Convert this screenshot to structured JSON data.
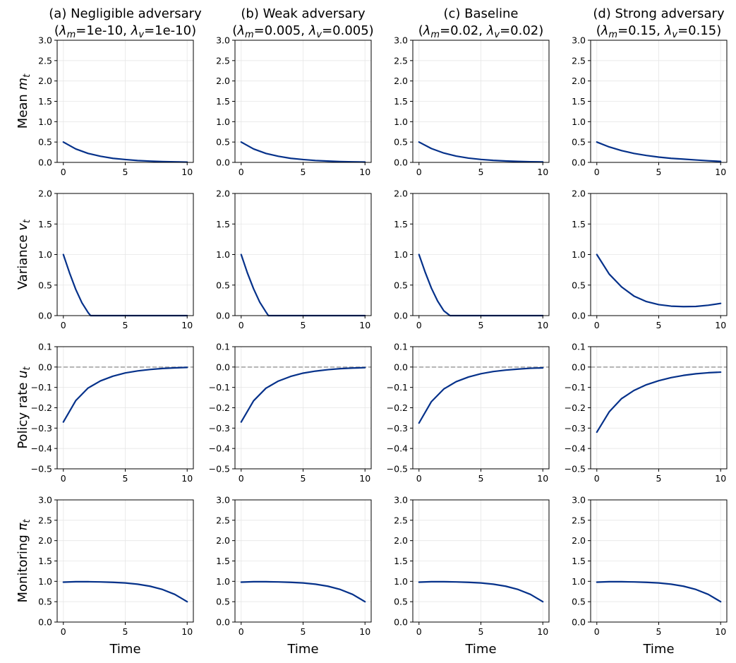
{
  "chart_data": {
    "type": "line",
    "layout": "4x4 grid of line subplots",
    "colors": {
      "curve": "#05318a",
      "grid": "#e6e6e6",
      "zero_line": "#9e9e9e",
      "axes": "#000000"
    },
    "columns": [
      {
        "title_line1": "(a) Negligible adversary",
        "title_line2": "(λm=1e-10, λv=1e-10)",
        "sub1": "m",
        "val1": "=1e-10, ",
        "sub2": "v",
        "val2": "=1e-10)"
      },
      {
        "title_line1": "(b) Weak adversary",
        "title_line2": "(λm=0.005, λv=0.005)",
        "sub1": "m",
        "val1": "=0.005, ",
        "sub2": "v",
        "val2": "=0.005)"
      },
      {
        "title_line1": "(c) Baseline",
        "title_line2": "(λm=0.02, λv=0.02)",
        "sub1": "m",
        "val1": "=0.02, ",
        "sub2": "v",
        "val2": "=0.02)"
      },
      {
        "title_line1": "(d) Strong adversary",
        "title_line2": "(λm=0.15, λv=0.15)",
        "sub1": "m",
        "val1": "=0.15, ",
        "sub2": "v",
        "val2": "=0.15)"
      }
    ],
    "rows": [
      {
        "ylabel": "Mean m_t",
        "label_text": "Mean ",
        "label_sym": "m",
        "label_sub": "t",
        "ylim": [
          0,
          3.0
        ],
        "yticks": [
          "0.0",
          "0.5",
          "1.0",
          "1.5",
          "2.0",
          "2.5",
          "3.0"
        ],
        "zero_line": false
      },
      {
        "ylabel": "Variance v_t",
        "label_text": "Variance ",
        "label_sym": "v",
        "label_sub": "t",
        "ylim": [
          0,
          2.0
        ],
        "yticks": [
          "0.0",
          "0.5",
          "1.0",
          "1.5",
          "2.0"
        ],
        "zero_line": false
      },
      {
        "ylabel": "Policy rate u_t",
        "label_text": "Policy rate ",
        "label_sym": "u",
        "label_sub": "t",
        "ylim": [
          -0.5,
          0.1
        ],
        "yticks": [
          "−0.5",
          "−0.4",
          "−0.3",
          "−0.2",
          "−0.1",
          "0.0",
          "0.1"
        ],
        "zero_line": true
      },
      {
        "ylabel": "Monitoring π_t",
        "label_text": "Monitoring ",
        "label_sym": "π",
        "label_sub": "t",
        "ylim": [
          0,
          3.0
        ],
        "yticks": [
          "0.0",
          "0.5",
          "1.0",
          "1.5",
          "2.0",
          "2.5",
          "3.0"
        ],
        "zero_line": false
      }
    ],
    "xlabel": "Time",
    "xlim": [
      -0.5,
      10.5
    ],
    "xticks": [
      "0",
      "5",
      "10"
    ],
    "grid": true,
    "series": [
      [
        {
          "x": [
            0,
            1,
            2,
            3,
            4,
            5,
            6,
            7,
            8,
            9,
            10
          ],
          "y": [
            0.5,
            0.33,
            0.22,
            0.15,
            0.1,
            0.07,
            0.046,
            0.031,
            0.02,
            0.013,
            0.008
          ]
        },
        {
          "x": [
            0,
            0.5,
            1,
            1.5,
            2,
            2.2,
            3,
            4,
            5,
            6,
            7,
            8,
            9,
            10
          ],
          "y": [
            1.0,
            0.7,
            0.43,
            0.21,
            0.05,
            0,
            0,
            0,
            0,
            0,
            0,
            0,
            0,
            0
          ]
        },
        {
          "x": [
            0,
            1,
            2,
            3,
            4,
            5,
            6,
            7,
            8,
            9,
            10
          ],
          "y": [
            -0.27,
            -0.165,
            -0.103,
            -0.068,
            -0.045,
            -0.029,
            -0.019,
            -0.012,
            -0.007,
            -0.004,
            -0.002
          ]
        },
        {
          "x": [
            0,
            1,
            2,
            3,
            4,
            5,
            6,
            7,
            8,
            9,
            10
          ],
          "y": [
            0.98,
            0.99,
            0.99,
            0.985,
            0.975,
            0.96,
            0.93,
            0.88,
            0.8,
            0.68,
            0.5
          ]
        }
      ],
      [
        {
          "x": [
            0,
            1,
            2,
            3,
            4,
            5,
            6,
            7,
            8,
            9,
            10
          ],
          "y": [
            0.5,
            0.33,
            0.22,
            0.15,
            0.1,
            0.07,
            0.047,
            0.032,
            0.021,
            0.014,
            0.009
          ]
        },
        {
          "x": [
            0,
            0.5,
            1,
            1.5,
            2,
            2.2,
            3,
            4,
            5,
            6,
            7,
            8,
            9,
            10
          ],
          "y": [
            1.0,
            0.7,
            0.44,
            0.22,
            0.06,
            0,
            0,
            0,
            0,
            0,
            0,
            0,
            0,
            0
          ]
        },
        {
          "x": [
            0,
            1,
            2,
            3,
            4,
            5,
            6,
            7,
            8,
            9,
            10
          ],
          "y": [
            -0.27,
            -0.166,
            -0.104,
            -0.069,
            -0.046,
            -0.03,
            -0.02,
            -0.013,
            -0.008,
            -0.005,
            -0.003
          ]
        },
        {
          "x": [
            0,
            1,
            2,
            3,
            4,
            5,
            6,
            7,
            8,
            9,
            10
          ],
          "y": [
            0.98,
            0.99,
            0.99,
            0.985,
            0.975,
            0.96,
            0.93,
            0.88,
            0.8,
            0.68,
            0.5
          ]
        }
      ],
      [
        {
          "x": [
            0,
            1,
            2,
            3,
            4,
            5,
            6,
            7,
            8,
            9,
            10
          ],
          "y": [
            0.5,
            0.34,
            0.23,
            0.155,
            0.105,
            0.073,
            0.05,
            0.035,
            0.024,
            0.016,
            0.011
          ]
        },
        {
          "x": [
            0,
            0.5,
            1,
            1.5,
            2,
            2.5,
            3,
            4,
            5,
            6,
            7,
            8,
            9,
            10
          ],
          "y": [
            1.0,
            0.71,
            0.45,
            0.24,
            0.08,
            0,
            0,
            0,
            0,
            0,
            0,
            0,
            0,
            0
          ]
        },
        {
          "x": [
            0,
            1,
            2,
            3,
            4,
            5,
            6,
            7,
            8,
            9,
            10
          ],
          "y": [
            -0.275,
            -0.17,
            -0.108,
            -0.072,
            -0.049,
            -0.033,
            -0.022,
            -0.015,
            -0.01,
            -0.006,
            -0.004
          ]
        },
        {
          "x": [
            0,
            1,
            2,
            3,
            4,
            5,
            6,
            7,
            8,
            9,
            10
          ],
          "y": [
            0.98,
            0.99,
            0.99,
            0.985,
            0.975,
            0.96,
            0.93,
            0.88,
            0.8,
            0.68,
            0.5
          ]
        }
      ],
      [
        {
          "x": [
            0,
            1,
            2,
            3,
            4,
            5,
            6,
            7,
            8,
            9,
            10
          ],
          "y": [
            0.5,
            0.38,
            0.29,
            0.22,
            0.17,
            0.13,
            0.1,
            0.08,
            0.06,
            0.04,
            0.025
          ]
        },
        {
          "x": [
            0,
            1,
            2,
            3,
            4,
            5,
            6,
            7,
            8,
            9,
            10
          ],
          "y": [
            1.0,
            0.68,
            0.47,
            0.32,
            0.23,
            0.18,
            0.155,
            0.147,
            0.15,
            0.17,
            0.2
          ]
        },
        {
          "x": [
            0,
            1,
            2,
            3,
            4,
            5,
            6,
            7,
            8,
            9,
            10
          ],
          "y": [
            -0.32,
            -0.22,
            -0.155,
            -0.115,
            -0.087,
            -0.067,
            -0.052,
            -0.041,
            -0.033,
            -0.028,
            -0.025
          ]
        },
        {
          "x": [
            0,
            1,
            2,
            3,
            4,
            5,
            6,
            7,
            8,
            9,
            10
          ],
          "y": [
            0.98,
            0.99,
            0.99,
            0.985,
            0.975,
            0.96,
            0.93,
            0.88,
            0.8,
            0.68,
            0.5
          ]
        }
      ]
    ]
  }
}
